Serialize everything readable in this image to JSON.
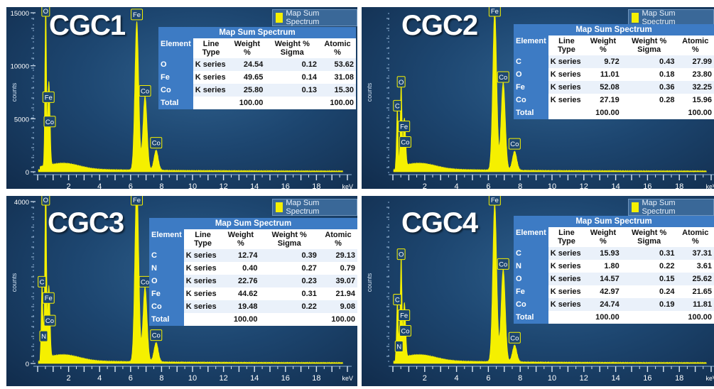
{
  "legend_label": "Map Sum Spectrum",
  "table_title": "Map Sum Spectrum",
  "colors": {
    "spectrum": "#f5f000",
    "header_blue": "#3d7bc4",
    "panel_bg": "#1d4670"
  },
  "chart_data": [
    {
      "type": "line",
      "name": "CGC1",
      "xlabel": "keV",
      "ylabel": "counts",
      "xlim": [
        0,
        20
      ],
      "ylim": [
        0,
        15000
      ],
      "x_ticks": [
        "2",
        "4",
        "6",
        "8",
        "10",
        "12",
        "14",
        "16",
        "18"
      ],
      "y_ticks": [
        "15000",
        "10000",
        "5000",
        "0"
      ],
      "y_tick_values": [
        15000,
        10000,
        5000,
        0
      ],
      "peaks": [
        {
          "label": "O",
          "energy": 0.52,
          "counts": 15200
        },
        {
          "label": "Fe",
          "energy": 0.7,
          "counts": 6200
        },
        {
          "label": "Co",
          "energy": 0.78,
          "counts": 3900
        },
        {
          "label": "Fe",
          "energy": 6.4,
          "counts": 14000
        },
        {
          "label": "Co",
          "energy": 6.93,
          "counts": 6800
        },
        {
          "label": "Co",
          "energy": 7.65,
          "counts": 1900
        }
      ],
      "table": {
        "header": [
          "Element",
          "Line Type",
          "Weight %",
          "Weight % Sigma",
          "Atomic %"
        ],
        "rows": [
          [
            "O",
            "K series",
            "24.54",
            "0.12",
            "53.62"
          ],
          [
            "Fe",
            "K series",
            "49.65",
            "0.14",
            "31.08"
          ],
          [
            "Co",
            "K series",
            "25.80",
            "0.13",
            "15.30"
          ],
          [
            "Total",
            "",
            "100.00",
            "",
            "100.00"
          ]
        ]
      }
    },
    {
      "type": "line",
      "name": "CGC2",
      "xlabel": "keV",
      "ylabel": "counts",
      "xlim": [
        0,
        20
      ],
      "ylim": [
        0,
        10000
      ],
      "x_ticks": [
        "2",
        "4",
        "6",
        "8",
        "10",
        "12",
        "14",
        "16",
        "18"
      ],
      "y_ticks": [],
      "y_tick_values": [],
      "peaks": [
        {
          "label": "C",
          "energy": 0.28,
          "counts": 3600
        },
        {
          "label": "O",
          "energy": 0.52,
          "counts": 5100
        },
        {
          "label": "Fe",
          "energy": 0.7,
          "counts": 2300
        },
        {
          "label": "Co",
          "energy": 0.78,
          "counts": 1500
        },
        {
          "label": "Fe",
          "energy": 6.4,
          "counts": 10000
        },
        {
          "label": "Co",
          "energy": 6.93,
          "counts": 5400
        },
        {
          "label": "Co",
          "energy": 7.65,
          "counts": 1200
        }
      ],
      "table": {
        "header": [
          "Element",
          "Line Type",
          "Weight %",
          "Weight % Sigma",
          "Atomic %"
        ],
        "rows": [
          [
            "C",
            "K series",
            "9.72",
            "0.43",
            "27.99"
          ],
          [
            "O",
            "K series",
            "11.01",
            "0.18",
            "23.80"
          ],
          [
            "Fe",
            "K series",
            "52.08",
            "0.36",
            "32.25"
          ],
          [
            "Co",
            "K series",
            "27.19",
            "0.28",
            "15.96"
          ],
          [
            "Total",
            "",
            "100.00",
            "",
            "100.00"
          ]
        ]
      }
    },
    {
      "type": "line",
      "name": "CGC3",
      "xlabel": "keV",
      "ylabel": "counts",
      "xlim": [
        0,
        20
      ],
      "ylim": [
        0,
        4000
      ],
      "x_ticks": [
        "2",
        "4",
        "6",
        "8",
        "10",
        "12",
        "14",
        "16",
        "18"
      ],
      "y_ticks": [
        "4000",
        "0"
      ],
      "y_tick_values": [
        4000,
        0
      ],
      "peaks": [
        {
          "label": "O",
          "energy": 0.52,
          "counts": 4500
        },
        {
          "label": "C",
          "energy": 0.28,
          "counts": 1800
        },
        {
          "label": "Fe",
          "energy": 0.7,
          "counts": 1400
        },
        {
          "label": "Co",
          "energy": 0.78,
          "counts": 840
        },
        {
          "label": "N",
          "energy": 0.39,
          "counts": 480
        },
        {
          "label": "Fe",
          "energy": 6.4,
          "counts": 4500
        },
        {
          "label": "Co",
          "energy": 6.93,
          "counts": 1800
        },
        {
          "label": "Co",
          "energy": 7.65,
          "counts": 480
        }
      ],
      "table": {
        "header": [
          "Element",
          "Line Type",
          "Weight %",
          "Weight % Sigma",
          "Atomic %"
        ],
        "rows": [
          [
            "C",
            "K series",
            "12.74",
            "0.39",
            "29.13"
          ],
          [
            "N",
            "K series",
            "0.40",
            "0.27",
            "0.79"
          ],
          [
            "O",
            "K series",
            "22.76",
            "0.23",
            "39.07"
          ],
          [
            "Fe",
            "K series",
            "44.62",
            "0.31",
            "21.94"
          ],
          [
            "Co",
            "K series",
            "19.48",
            "0.22",
            "9.08"
          ],
          [
            "Total",
            "",
            "100.00",
            "",
            "100.00"
          ]
        ]
      }
    },
    {
      "type": "line",
      "name": "CGC4",
      "xlabel": "keV",
      "ylabel": "counts",
      "xlim": [
        0,
        20
      ],
      "ylim": [
        0,
        5000
      ],
      "x_ticks": [
        "2",
        "4",
        "6",
        "8",
        "10",
        "12",
        "14",
        "16",
        "18"
      ],
      "y_ticks": [],
      "y_tick_values": [],
      "peaks": [
        {
          "label": "O",
          "energy": 0.52,
          "counts": 3100
        },
        {
          "label": "C",
          "energy": 0.28,
          "counts": 1700
        },
        {
          "label": "Fe",
          "energy": 0.7,
          "counts": 1300
        },
        {
          "label": "Co",
          "energy": 0.78,
          "counts": 850
        },
        {
          "label": "N",
          "energy": 0.39,
          "counts": 420
        },
        {
          "label": "Fe",
          "energy": 6.4,
          "counts": 4900
        },
        {
          "label": "Co",
          "energy": 6.93,
          "counts": 2800
        },
        {
          "label": "Co",
          "energy": 7.65,
          "counts": 520
        }
      ],
      "table": {
        "header": [
          "Element",
          "Line Type",
          "Weight %",
          "Weight % Sigma",
          "Atomic %"
        ],
        "rows": [
          [
            "C",
            "K series",
            "15.93",
            "0.31",
            "37.31"
          ],
          [
            "N",
            "K series",
            "1.80",
            "0.22",
            "3.61"
          ],
          [
            "O",
            "K series",
            "14.57",
            "0.15",
            "25.62"
          ],
          [
            "Fe",
            "K series",
            "42.97",
            "0.24",
            "21.65"
          ],
          [
            "Co",
            "K series",
            "24.74",
            "0.19",
            "11.81"
          ],
          [
            "Total",
            "",
            "100.00",
            "",
            "100.00"
          ]
        ]
      }
    }
  ]
}
